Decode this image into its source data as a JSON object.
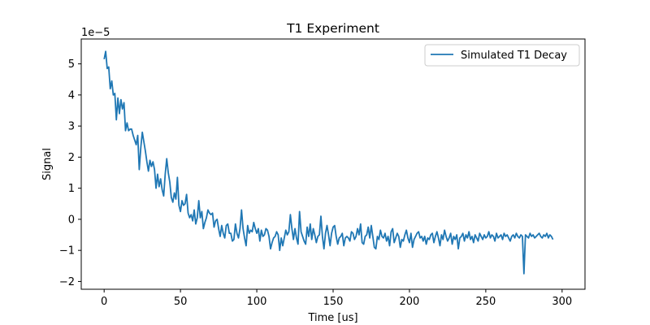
{
  "chart_data": {
    "type": "line",
    "title": "T1 Experiment",
    "xlabel": "Time [us]",
    "ylabel": "Signal",
    "offset_label": "1e−5",
    "xlim": [
      -15,
      315
    ],
    "ylim": [
      -2.25,
      5.8
    ],
    "xticks": [
      0,
      50,
      100,
      150,
      200,
      250,
      300
    ],
    "yticks": [
      -2,
      -1,
      0,
      1,
      2,
      3,
      4,
      5
    ],
    "ytick_labels": [
      "−2",
      "−1",
      "0",
      "1",
      "2",
      "3",
      "4",
      "5"
    ],
    "grid": false,
    "legend_position": "upper-right",
    "color": "#1f77b4",
    "series": [
      {
        "name": "Simulated T1 Decay",
        "x_start": 0,
        "x_step": 1,
        "values": [
          5.15,
          5.4,
          4.85,
          4.9,
          4.2,
          4.45,
          4.0,
          4.05,
          3.2,
          3.9,
          3.4,
          3.85,
          3.55,
          3.75,
          2.85,
          3.1,
          2.85,
          2.9,
          2.9,
          2.7,
          2.55,
          2.4,
          2.7,
          1.6,
          2.3,
          2.8,
          2.5,
          2.2,
          1.85,
          1.55,
          1.9,
          1.7,
          1.85,
          1.6,
          1.0,
          1.45,
          1.05,
          1.3,
          0.95,
          0.75,
          1.45,
          1.95,
          1.5,
          1.2,
          0.7,
          0.55,
          0.85,
          0.65,
          1.35,
          0.45,
          0.25,
          0.6,
          0.45,
          0.5,
          0.8,
          0.2,
          0.05,
          0.15,
          -0.05,
          0.3,
          -0.15,
          0.05,
          0.6,
          0.05,
          0.25,
          -0.3,
          -0.1,
          0.05,
          0.3,
          0.2,
          0.15,
          0.2,
          -0.25,
          -0.05,
          0.0,
          -0.3,
          -0.55,
          -0.2,
          -0.45,
          -0.6,
          -0.2,
          -0.15,
          -0.45,
          -0.45,
          -0.7,
          -0.65,
          -0.15,
          -0.45,
          -0.6,
          -0.3,
          0.3,
          -0.3,
          -0.6,
          -0.85,
          -0.2,
          -0.45,
          -0.35,
          -0.4,
          -0.1,
          -0.3,
          -0.45,
          -0.3,
          -0.7,
          -0.35,
          -0.55,
          -0.5,
          -0.3,
          -0.35,
          -0.55,
          -0.95,
          -0.75,
          -0.6,
          -0.55,
          -0.4,
          -0.5,
          -1.0,
          -0.6,
          -0.85,
          -0.6,
          -0.35,
          -0.5,
          -0.4,
          0.15,
          -0.3,
          -0.65,
          -0.3,
          -0.6,
          -0.8,
          0.25,
          -0.4,
          -0.55,
          -0.7,
          -0.8,
          -0.25,
          -0.55,
          -0.15,
          -0.65,
          -0.3,
          -0.5,
          -0.75,
          -0.55,
          -0.5,
          0.1,
          -0.55,
          -0.95,
          -0.45,
          -0.2,
          -0.5,
          -0.85,
          -0.45,
          -0.25,
          -0.2,
          -0.55,
          -0.8,
          -0.6,
          -0.55,
          -0.45,
          -0.85,
          -0.6,
          -0.55,
          -0.6,
          -0.7,
          -0.4,
          -0.45,
          -0.65,
          -0.55,
          -0.3,
          -0.5,
          -0.15,
          -0.75,
          -0.8,
          -0.55,
          -0.5,
          -0.25,
          -0.6,
          -0.2,
          -0.55,
          -0.9,
          -0.95,
          -0.55,
          -0.65,
          -0.35,
          -0.55,
          -0.6,
          -0.45,
          -0.7,
          -0.55,
          -0.85,
          -0.4,
          -0.3,
          -0.75,
          -0.6,
          -0.45,
          -0.55,
          -0.9,
          -0.65,
          -0.7,
          -0.5,
          -0.35,
          -0.6,
          -0.75,
          -0.45,
          -0.9,
          -0.65,
          -0.55,
          -0.45,
          -0.4,
          -0.6,
          -0.55,
          -0.7,
          -0.55,
          -0.8,
          -0.6,
          -0.65,
          -0.5,
          -0.45,
          -0.75,
          -0.55,
          -0.4,
          -0.6,
          -0.85,
          -0.5,
          -0.65,
          -0.35,
          -0.55,
          -0.7,
          -0.6,
          -0.45,
          -0.8,
          -0.55,
          -0.65,
          -0.5,
          -0.95,
          -0.6,
          -0.55,
          -0.45,
          -0.7,
          -0.5,
          -0.6,
          -0.4,
          -0.65,
          -0.55,
          -0.75,
          -0.5,
          -0.6,
          -0.7,
          -0.45,
          -0.55,
          -0.65,
          -0.5,
          -0.6,
          -0.55,
          -0.4,
          -0.6,
          -0.5,
          -0.55,
          -0.7,
          -0.45,
          -0.6,
          -0.55,
          -0.5,
          -0.65,
          -0.45,
          -0.55,
          -0.5,
          -0.6,
          -0.7,
          -0.55,
          -0.5,
          -0.6,
          -0.45,
          -0.55,
          -0.6,
          -0.5,
          -0.55,
          -1.75,
          -0.5,
          -0.55,
          -0.6,
          -0.45,
          -0.55,
          -0.5,
          -0.6,
          -0.55,
          -0.5,
          -0.45,
          -0.55,
          -0.6,
          -0.5,
          -0.55,
          -0.45,
          -0.6,
          -0.5,
          -0.55,
          -0.65
        ]
      }
    ]
  }
}
